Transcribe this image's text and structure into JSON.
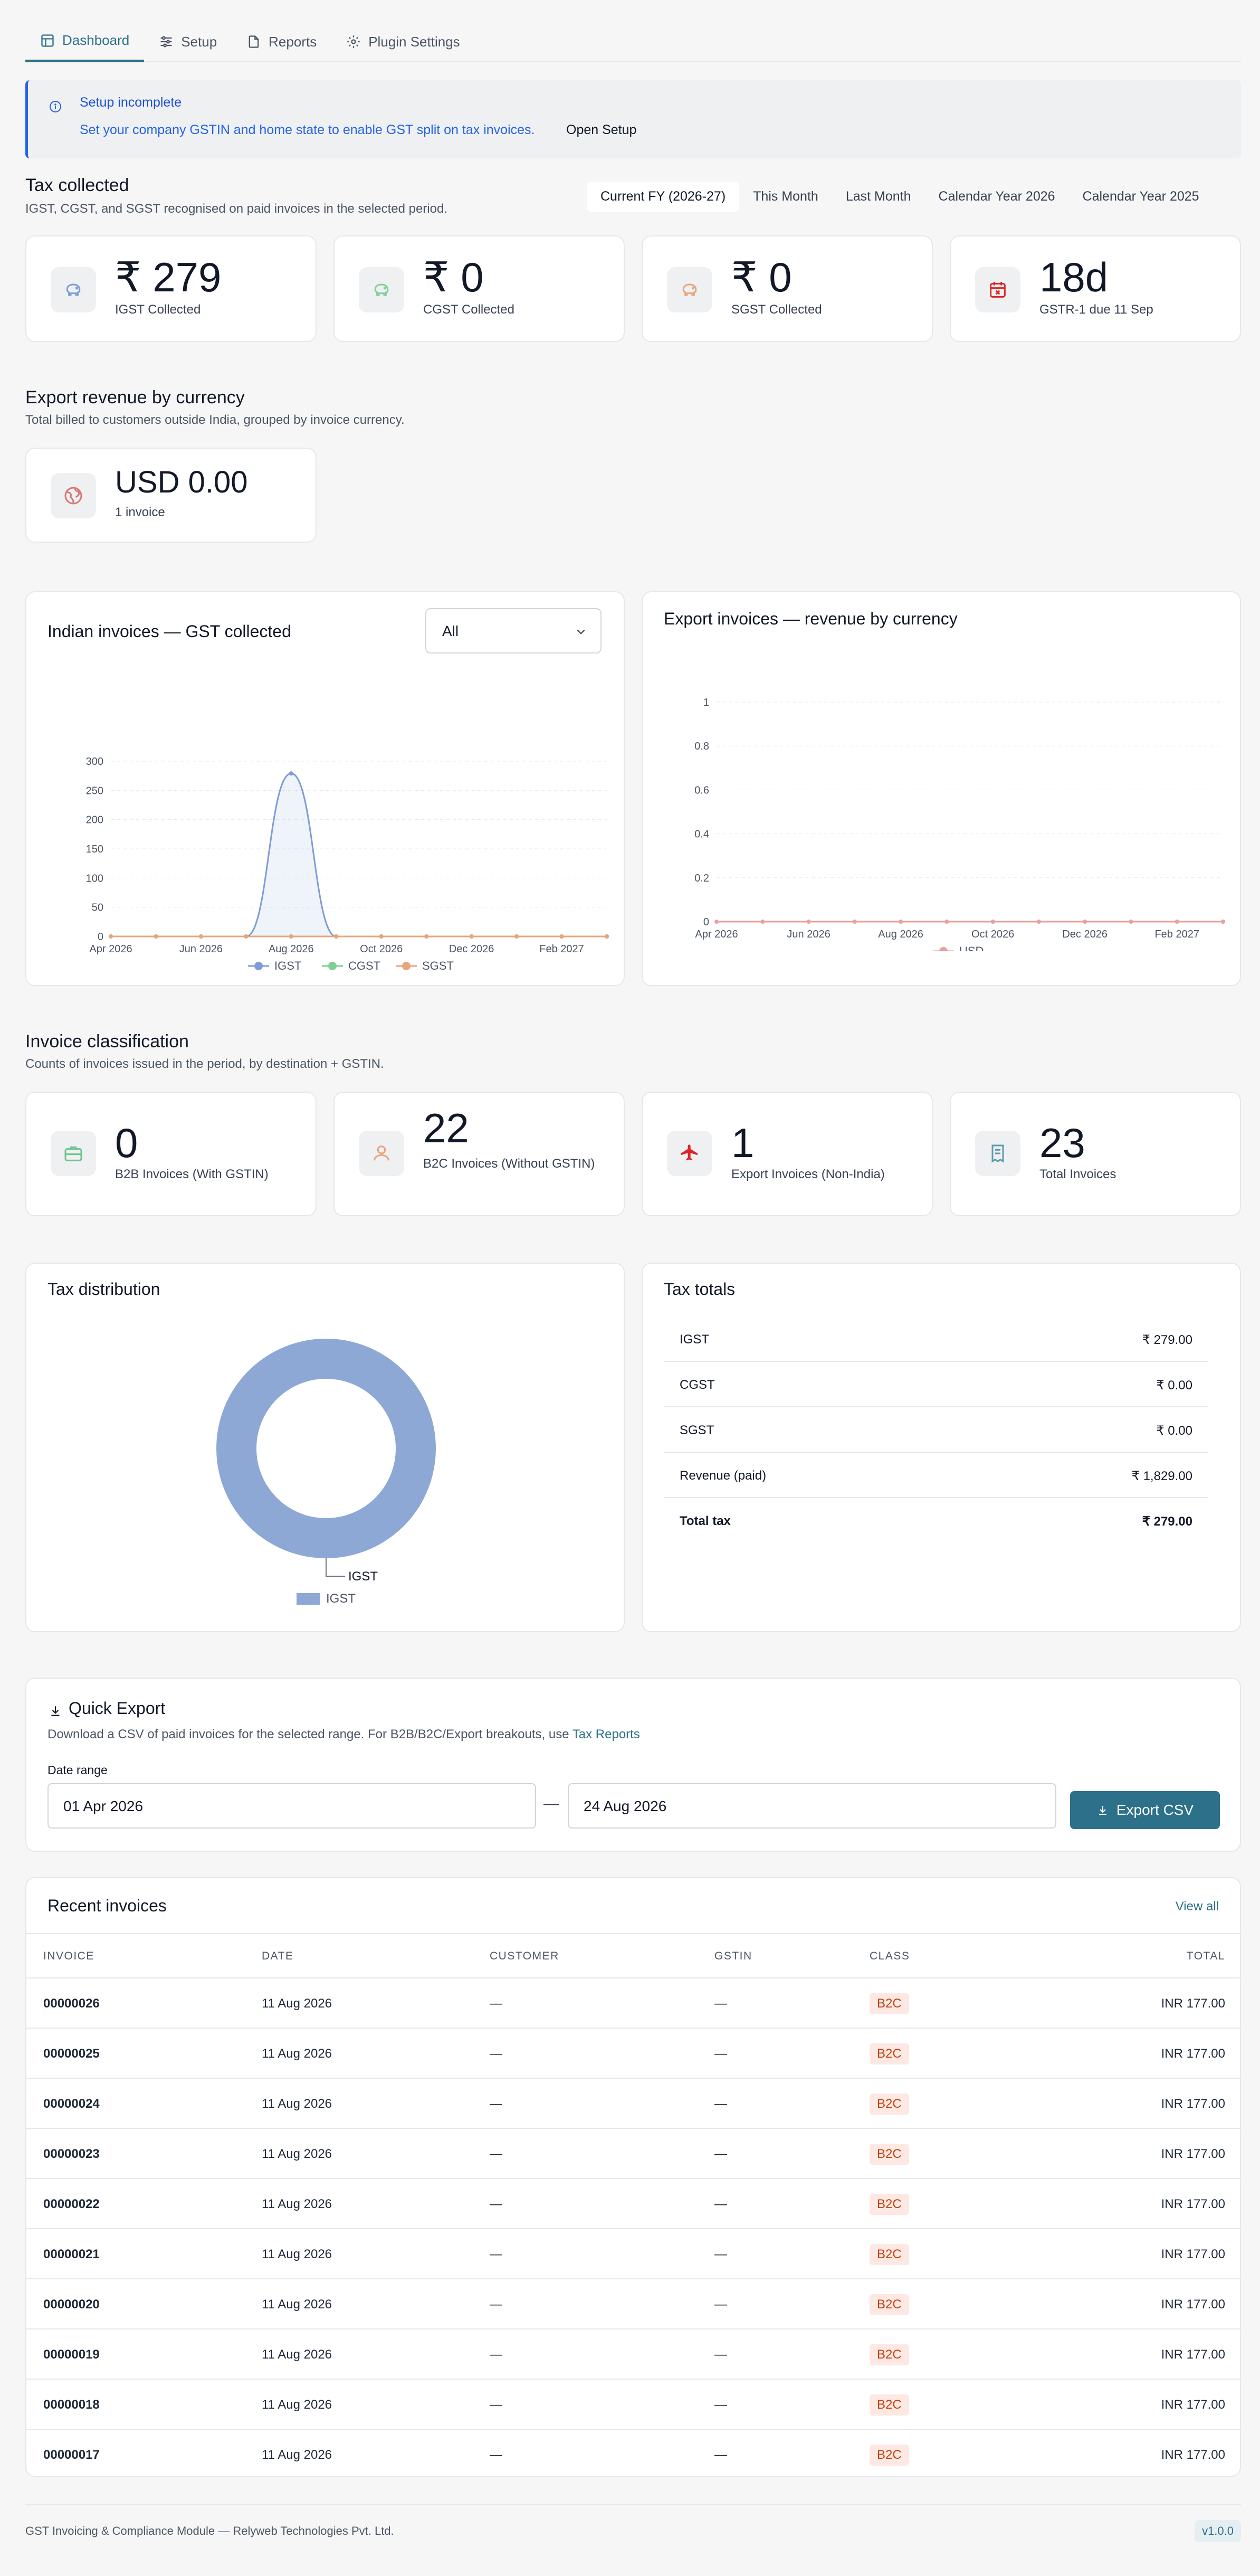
{
  "tabs": [
    {
      "label": "Dashboard",
      "icon": "layout-icon"
    },
    {
      "label": "Setup",
      "icon": "sliders-icon"
    },
    {
      "label": "Reports",
      "icon": "file-icon"
    },
    {
      "label": "Plugin Settings",
      "icon": "gear-icon"
    }
  ],
  "alert": {
    "title": "Setup incomplete",
    "message": "Set your company GSTIN and home state to enable GST split on tax invoices.",
    "action": "Open Setup"
  },
  "tax_collected": {
    "title": "Tax collected",
    "subtitle": "IGST, CGST, and SGST recognised on paid invoices in the selected period.",
    "ranges": [
      "Current FY (2026-27)",
      "This Month",
      "Last Month",
      "Calendar Year 2026",
      "Calendar Year 2025"
    ],
    "active_range": "Current FY (2026-27)",
    "cards": [
      {
        "value": "₹ 279",
        "label": "IGST Collected",
        "icon": "piggy-bank-icon",
        "color": "#7e9cd6"
      },
      {
        "value": "₹ 0",
        "label": "CGST Collected",
        "icon": "piggy-bank-icon",
        "color": "#7fcf96"
      },
      {
        "value": "₹ 0",
        "label": "SGST Collected",
        "icon": "piggy-bank-icon",
        "color": "#e8a47c"
      },
      {
        "value": "18d",
        "label": "GSTR-1 due 11 Sep",
        "icon": "calendar-x-icon",
        "color": "#dc2626"
      }
    ]
  },
  "export_revenue": {
    "title": "Export revenue by currency",
    "subtitle": "Total billed to customers outside India, grouped by invoice currency.",
    "card": {
      "value": "USD 0.00",
      "label": "1 invoice",
      "icon": "globe-icon"
    }
  },
  "panels": {
    "gst_chart_title": "Indian invoices — GST collected",
    "filter_value": "All",
    "export_chart_title": "Export invoices — revenue by currency"
  },
  "chart_data": [
    {
      "type": "line",
      "title": "Indian invoices — GST collected",
      "x": [
        "Apr 2026",
        "May 2026",
        "Jun 2026",
        "Jul 2026",
        "Aug 2026",
        "Sep 2026",
        "Oct 2026",
        "Nov 2026",
        "Dec 2026",
        "Jan 2027",
        "Feb 2027",
        "Mar 2027"
      ],
      "x_tick_labels": [
        "Apr 2026",
        "Jun 2026",
        "Aug 2026",
        "Oct 2026",
        "Dec 2026",
        "Feb 2027"
      ],
      "ylim": [
        0,
        300
      ],
      "y_ticks": [
        0,
        50,
        100,
        150,
        200,
        250,
        300
      ],
      "series": [
        {
          "name": "IGST",
          "values": [
            0,
            0,
            0,
            0,
            279,
            0,
            0,
            0,
            0,
            0,
            0,
            0
          ],
          "color": "#7e9cd6"
        },
        {
          "name": "CGST",
          "values": [
            0,
            0,
            0,
            0,
            0,
            0,
            0,
            0,
            0,
            0,
            0,
            0
          ],
          "color": "#7fcf96"
        },
        {
          "name": "SGST",
          "values": [
            0,
            0,
            0,
            0,
            0,
            0,
            0,
            0,
            0,
            0,
            0,
            0
          ],
          "color": "#e8a47c"
        }
      ],
      "grid": true,
      "legend": "bottom"
    },
    {
      "type": "line",
      "title": "Export invoices — revenue by currency",
      "x": [
        "Apr 2026",
        "May 2026",
        "Jun 2026",
        "Jul 2026",
        "Aug 2026",
        "Sep 2026",
        "Oct 2026",
        "Nov 2026",
        "Dec 2026",
        "Jan 2027",
        "Feb 2027",
        "Mar 2027"
      ],
      "x_tick_labels": [
        "Apr 2026",
        "Jun 2026",
        "Aug 2026",
        "Oct 2026",
        "Dec 2026",
        "Feb 2027"
      ],
      "ylim": [
        0,
        1
      ],
      "y_ticks": [
        "0",
        "0.2",
        "0.4",
        "0.6",
        "0.8",
        "1"
      ],
      "series": [
        {
          "name": "USD",
          "values": [
            0,
            0,
            0,
            0,
            0,
            0,
            0,
            0,
            0,
            0,
            0,
            0
          ],
          "color": "#e8a0a0"
        }
      ],
      "grid": true,
      "legend": "bottom"
    },
    {
      "type": "pie",
      "title": "Tax distribution",
      "categories": [
        "IGST"
      ],
      "values": [
        279
      ],
      "colors": [
        "#8ea8d6"
      ],
      "legend": "bottom"
    }
  ],
  "classification": {
    "title": "Invoice classification",
    "subtitle": "Counts of invoices issued in the period, by destination + GSTIN.",
    "cards": [
      {
        "value": "0",
        "label": "B2B Invoices (With GSTIN)",
        "icon": "briefcase-icon"
      },
      {
        "value": "22",
        "label": "B2C Invoices (Without GSTIN)",
        "icon": "user-icon"
      },
      {
        "value": "1",
        "label": "Export Invoices (Non-India)",
        "icon": "plane-icon"
      },
      {
        "value": "23",
        "label": "Total Invoices",
        "icon": "receipt-icon"
      }
    ]
  },
  "tax_distribution": {
    "title": "Tax distribution",
    "slice_label": "IGST",
    "legend": "IGST"
  },
  "tax_totals": {
    "title": "Tax totals",
    "rows": [
      {
        "k": "IGST",
        "v": "₹ 279.00"
      },
      {
        "k": "CGST",
        "v": "₹ 0.00"
      },
      {
        "k": "SGST",
        "v": "₹ 0.00"
      },
      {
        "k": "Revenue (paid)",
        "v": "₹ 1,829.00"
      },
      {
        "k": "Total tax",
        "v": "₹ 279.00"
      }
    ]
  },
  "quick_export": {
    "title": "Quick Export",
    "desc": "Download a CSV of paid invoices for the selected range. For B2B/B2C/Export breakouts, use",
    "link": "Tax Reports",
    "date_label": "Date range",
    "from": "01 Apr 2026",
    "to": "24 Aug 2026",
    "separator": "—",
    "button": "Export CSV"
  },
  "recent": {
    "title": "Recent invoices",
    "view_all": "View all",
    "columns": [
      "INVOICE",
      "DATE",
      "CUSTOMER",
      "GSTIN",
      "CLASS",
      "TOTAL"
    ],
    "rows": [
      {
        "invoice": "00000026",
        "date": "11 Aug 2026",
        "customer": "—",
        "gstin": "—",
        "class": "B2C",
        "total": "INR 177.00"
      },
      {
        "invoice": "00000025",
        "date": "11 Aug 2026",
        "customer": "—",
        "gstin": "—",
        "class": "B2C",
        "total": "INR 177.00"
      },
      {
        "invoice": "00000024",
        "date": "11 Aug 2026",
        "customer": "—",
        "gstin": "—",
        "class": "B2C",
        "total": "INR 177.00"
      },
      {
        "invoice": "00000023",
        "date": "11 Aug 2026",
        "customer": "—",
        "gstin": "—",
        "class": "B2C",
        "total": "INR 177.00"
      },
      {
        "invoice": "00000022",
        "date": "11 Aug 2026",
        "customer": "—",
        "gstin": "—",
        "class": "B2C",
        "total": "INR 177.00"
      },
      {
        "invoice": "00000021",
        "date": "11 Aug 2026",
        "customer": "—",
        "gstin": "—",
        "class": "B2C",
        "total": "INR 177.00"
      },
      {
        "invoice": "00000020",
        "date": "11 Aug 2026",
        "customer": "—",
        "gstin": "—",
        "class": "B2C",
        "total": "INR 177.00"
      },
      {
        "invoice": "00000019",
        "date": "11 Aug 2026",
        "customer": "—",
        "gstin": "—",
        "class": "B2C",
        "total": "INR 177.00"
      },
      {
        "invoice": "00000018",
        "date": "11 Aug 2026",
        "customer": "—",
        "gstin": "—",
        "class": "B2C",
        "total": "INR 177.00"
      },
      {
        "invoice": "00000017",
        "date": "11 Aug 2026",
        "customer": "—",
        "gstin": "—",
        "class": "B2C",
        "total": "INR 177.00"
      }
    ]
  },
  "footer": {
    "text": "GST Invoicing & Compliance Module — Relyweb Technologies Pvt. Ltd.",
    "version": "v1.0.0"
  }
}
